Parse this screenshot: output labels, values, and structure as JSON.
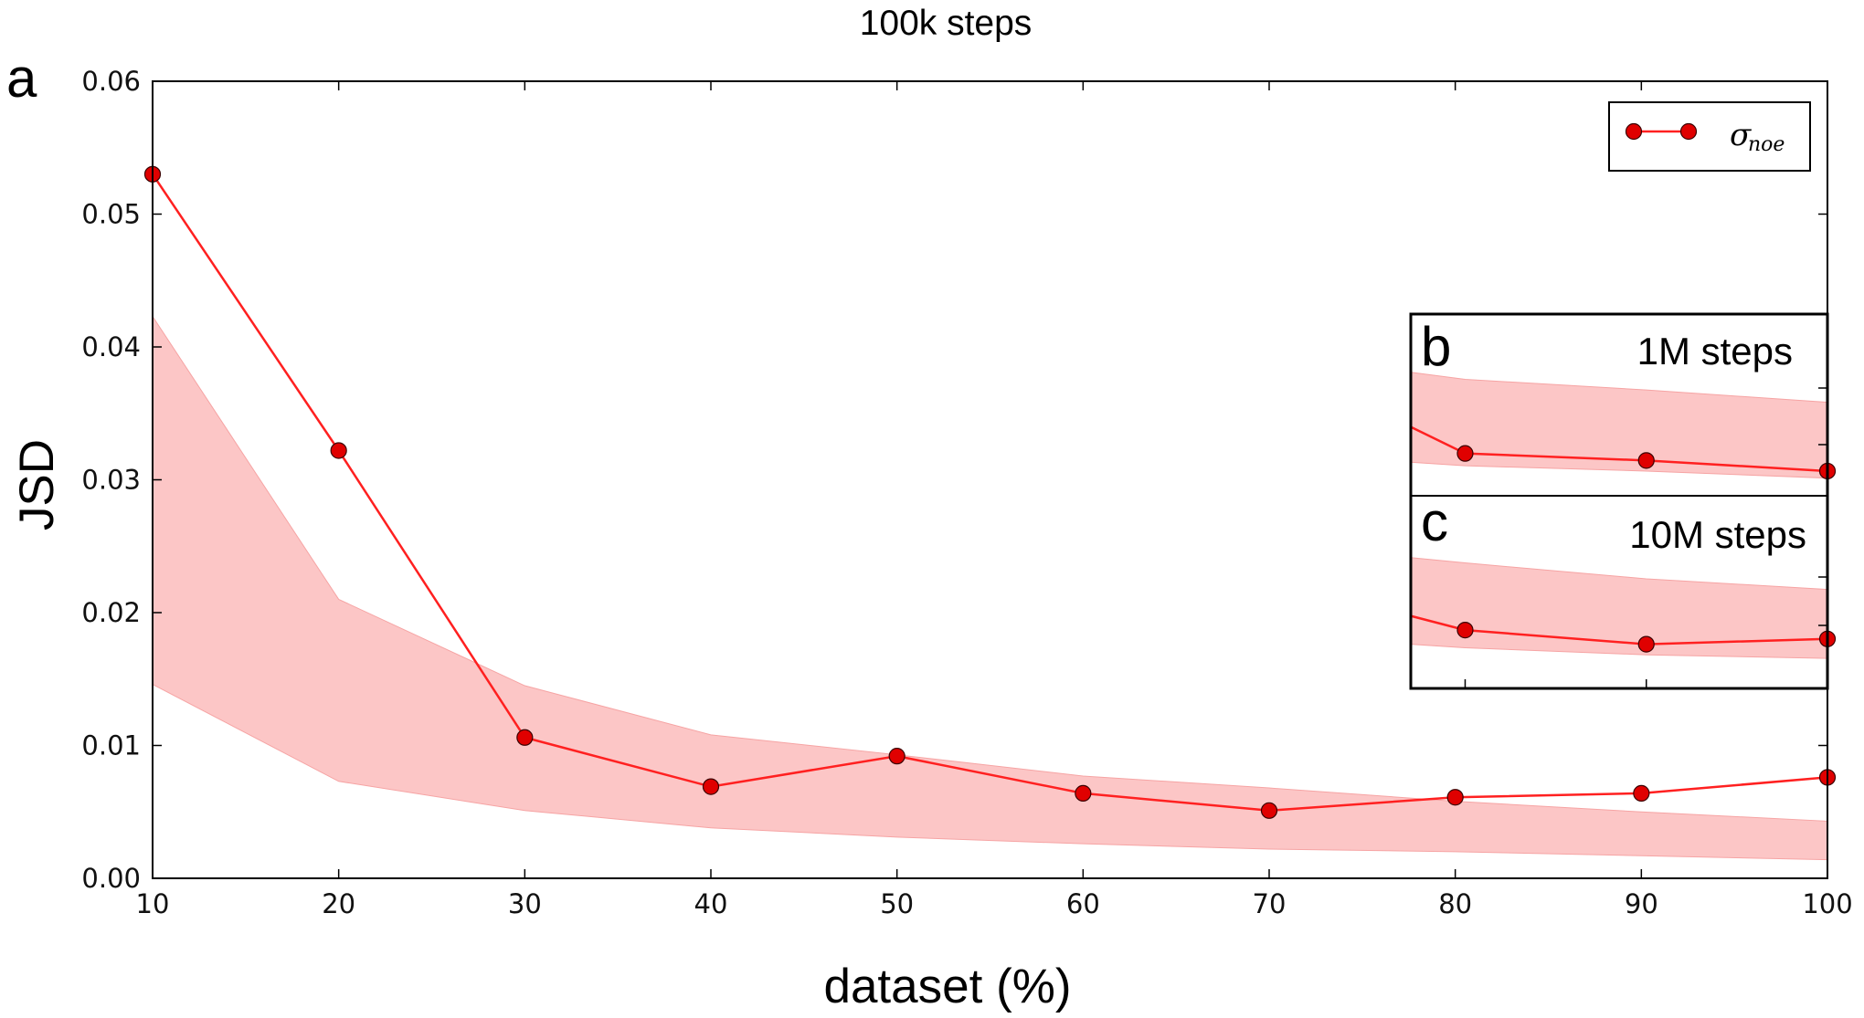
{
  "chart_data": [
    {
      "panel": "a",
      "type": "line",
      "title": "100k steps",
      "xlabel": "dataset (%)",
      "ylabel": "JSD",
      "xlim": [
        10,
        100
      ],
      "ylim": [
        0.0,
        0.06
      ],
      "x_ticks": [
        "10",
        "20",
        "30",
        "40",
        "50",
        "60",
        "70",
        "80",
        "90",
        "100"
      ],
      "y_ticks": [
        "0.00",
        "0.01",
        "0.02",
        "0.03",
        "0.04",
        "0.05",
        "0.06"
      ],
      "grid": false,
      "legend": {
        "placement": "top-right",
        "symbol": "σ",
        "subscript": "noe"
      },
      "colors": {
        "line": "#ff2020",
        "marker": "#e00000",
        "band": "#fcc0c0"
      },
      "series": [
        {
          "name": "σnoe",
          "x": [
            10,
            20,
            30,
            40,
            50,
            60,
            70,
            80,
            90,
            100
          ],
          "values": [
            0.053,
            0.0322,
            0.0106,
            0.0069,
            0.0092,
            0.0064,
            0.0051,
            0.0061,
            0.0064,
            0.0076
          ]
        }
      ],
      "band": {
        "x": [
          10,
          20,
          30,
          40,
          50,
          60,
          70,
          80,
          90,
          100
        ],
        "upper": [
          0.0423,
          0.021,
          0.0145,
          0.0108,
          0.0093,
          0.0077,
          0.0068,
          0.0058,
          0.005,
          0.0043
        ],
        "lower": [
          0.0146,
          0.0073,
          0.0051,
          0.0038,
          0.0031,
          0.0026,
          0.0022,
          0.002,
          0.0017,
          0.0014
        ]
      }
    },
    {
      "panel": "b",
      "type": "line",
      "title": "1M steps",
      "xlim": [
        77,
        100
      ],
      "series": [
        {
          "x": [
            77,
            80,
            90,
            100
          ],
          "values": [
            0.0335,
            0.032,
            0.0316,
            0.031
          ]
        }
      ],
      "band": {
        "x": [
          77,
          80,
          90,
          100
        ],
        "upper": [
          0.0366,
          0.0362,
          0.0356,
          0.0349
        ],
        "lower": [
          0.0315,
          0.0313,
          0.031,
          0.0306
        ]
      }
    },
    {
      "panel": "c",
      "type": "line",
      "title": "10M steps",
      "xlim": [
        77,
        100
      ],
      "series": [
        {
          "x": [
            77,
            80,
            90,
            100
          ],
          "values": [
            0.0194,
            0.0186,
            0.0178,
            0.0181
          ]
        }
      ],
      "band": {
        "x": [
          77,
          80,
          90,
          100
        ],
        "upper": [
          0.0227,
          0.0224,
          0.0215,
          0.0209
        ],
        "lower": [
          0.0178,
          0.0176,
          0.0172,
          0.017
        ]
      }
    }
  ]
}
